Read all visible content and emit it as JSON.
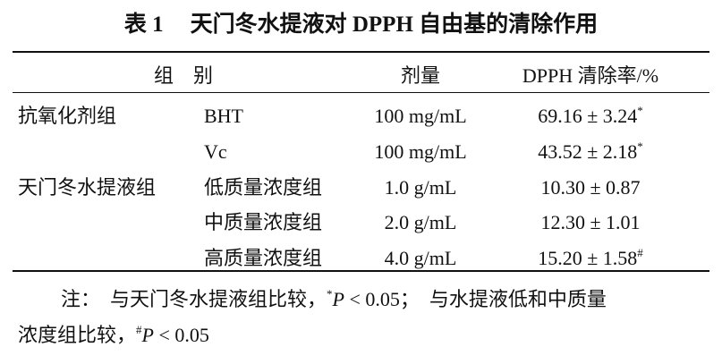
{
  "table": {
    "label": "表 1",
    "caption": "天门冬水提液对 DPPH 自由基的清除作用",
    "header": [
      "组　别",
      "剂量",
      "DPPH 清除率/%"
    ],
    "groups": [
      {
        "name": "抗氧化剂组",
        "rows": [
          {
            "item": "BHT",
            "dose": "100 mg/mL",
            "value": "69.16 ± 3.24",
            "mark": "*"
          },
          {
            "item": "Vc",
            "dose": "100 mg/mL",
            "value": "43.52 ± 2.18",
            "mark": "*"
          }
        ]
      },
      {
        "name": "天门冬水提液组",
        "rows": [
          {
            "item": "低质量浓度组",
            "dose": "1.0 g/mL",
            "value": "10.30 ± 0.87"
          },
          {
            "item": "中质量浓度组",
            "dose": "2.0 g/mL",
            "value": "12.30 ± 1.01"
          },
          {
            "item": "高质量浓度组",
            "dose": "4.0 g/mL",
            "value": "15.20 ± 1.58",
            "mark": "#"
          }
        ]
      }
    ],
    "note": {
      "line1": [
        "注：　与天门冬水提液组比较，",
        "*",
        "P",
        " < 0.05；　与水提液低和中质量"
      ],
      "line2": [
        "浓度组比较，",
        "#",
        "P",
        " < 0.05"
      ]
    }
  }
}
